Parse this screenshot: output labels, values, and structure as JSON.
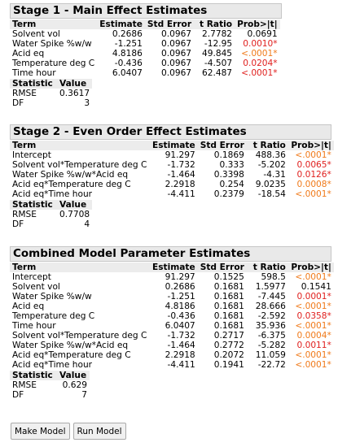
{
  "stage1": {
    "title": "Stage 1 - Main Effect Estimates",
    "headers": [
      "Term",
      "Estimate",
      "Std Error",
      "t Ratio",
      "Prob>|t|"
    ],
    "rows": [
      [
        "Solvent vol",
        "0.2686",
        "0.0967",
        "2.7782",
        "0.0691"
      ],
      [
        "Water Spike %w/w",
        "-1.251",
        "0.0967",
        "-12.95",
        "0.0010*"
      ],
      [
        "Acid eq",
        "4.8186",
        "0.0967",
        "49.845",
        "<.0001*"
      ],
      [
        "Temperature deg C",
        "-0.436",
        "0.0967",
        "-4.507",
        "0.0204*"
      ],
      [
        "Time hour",
        "6.0407",
        "0.0967",
        "62.487",
        "<.0001*"
      ]
    ],
    "prob_colors": [
      "",
      "sig",
      "sig2",
      "sig",
      "sig"
    ],
    "stat_headers": [
      "Statistic",
      "Value"
    ],
    "stats": [
      [
        "RMSE",
        "0.3617"
      ],
      [
        "DF",
        "3"
      ]
    ]
  },
  "stage2": {
    "title": "Stage 2 - Even Order Effect Estimates",
    "headers": [
      "Term",
      "Estimate",
      "Std Error",
      "t Ratio",
      "Prob>|t|"
    ],
    "rows": [
      [
        "Intercept",
        "91.297",
        "0.1869",
        "488.36",
        "<.0001*"
      ],
      [
        "Solvent vol*Temperature deg C",
        "-1.732",
        "0.333",
        "-5.202",
        "0.0065*"
      ],
      [
        "Water Spike %w/w*Acid eq",
        "-1.464",
        "0.3398",
        "-4.31",
        "0.0126*"
      ],
      [
        "Acid eq*Temperature deg C",
        "2.2918",
        "0.254",
        "9.0235",
        "0.0008*"
      ],
      [
        "Acid eq*Time hour",
        "-4.411",
        "0.2379",
        "-18.54",
        "<.0001*"
      ]
    ],
    "prob_colors": [
      "sig2",
      "sig",
      "sig",
      "sig2",
      "sig2"
    ],
    "stat_headers": [
      "Statistic",
      "Value"
    ],
    "stats": [
      [
        "RMSE",
        "0.7708"
      ],
      [
        "DF",
        "4"
      ]
    ]
  },
  "combined": {
    "title": "Combined Model Parameter Estimates",
    "headers": [
      "Term",
      "Estimate",
      "Std Error",
      "t Ratio",
      "Prob>|t|"
    ],
    "rows": [
      [
        "Intercept",
        "91.297",
        "0.1525",
        "598.5",
        "<.0001*"
      ],
      [
        "Solvent vol",
        "0.2686",
        "0.1681",
        "1.5977",
        "0.1541"
      ],
      [
        "Water Spike %w/w",
        "-1.251",
        "0.1681",
        "-7.445",
        "0.0001*"
      ],
      [
        "Acid eq",
        "4.8186",
        "0.1681",
        "28.666",
        "<.0001*"
      ],
      [
        "Temperature deg C",
        "-0.436",
        "0.1681",
        "-2.592",
        "0.0358*"
      ],
      [
        "Time hour",
        "6.0407",
        "0.1681",
        "35.936",
        "<.0001*"
      ],
      [
        "Solvent vol*Temperature deg C",
        "-1.732",
        "0.2717",
        "-6.375",
        "0.0004*"
      ],
      [
        "Water Spike %w/w*Acid eq",
        "-1.464",
        "0.2772",
        "-5.282",
        "0.0011*"
      ],
      [
        "Acid eq*Temperature deg C",
        "2.2918",
        "0.2072",
        "11.059",
        "<.0001*"
      ],
      [
        "Acid eq*Time hour",
        "-4.411",
        "0.1941",
        "-22.72",
        "<.0001*"
      ]
    ],
    "prob_colors": [
      "sig2",
      "",
      "sig",
      "sig2",
      "sig",
      "sig2",
      "sig2",
      "sig",
      "sig2",
      "sig2"
    ],
    "stat_headers": [
      "Statistic",
      "Value"
    ],
    "stats": [
      [
        "RMSE",
        "0.629"
      ],
      [
        "DF",
        "7"
      ]
    ]
  },
  "buttons": {
    "make_model": "Make Model",
    "run_model": "Run Model"
  },
  "colors": {
    "significant": "#e0201e",
    "highly_significant": "#f07a1a",
    "header_bg": "#ececec"
  }
}
